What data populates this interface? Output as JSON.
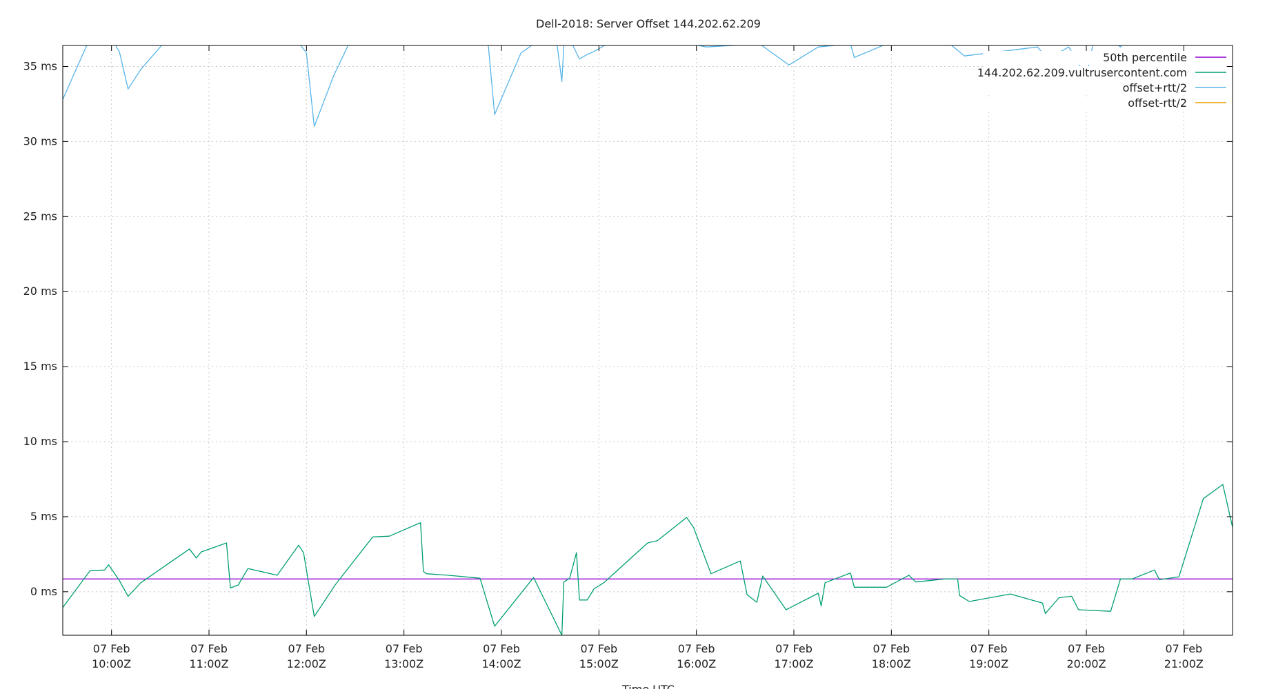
{
  "chart_data": {
    "type": "line",
    "title": "Dell-2018: Server Offset 144.202.62.209",
    "xlabel": "Time UTC",
    "ylabel": "",
    "y_unit": "ms",
    "ylim": [
      -2.9,
      36.4
    ],
    "yticks": [
      0,
      5,
      10,
      15,
      20,
      25,
      30,
      35
    ],
    "ytick_labels": [
      "0 ms",
      "5 ms",
      "10 ms",
      "15 ms",
      "20 ms",
      "25 ms",
      "30 ms",
      "35 ms"
    ],
    "xlim": [
      "07 Feb 09:30Z",
      "07 Feb 21:30Z"
    ],
    "xticks": [
      {
        "hour": 10,
        "line1": "07 Feb",
        "line2": "10:00Z"
      },
      {
        "hour": 11,
        "line1": "07 Feb",
        "line2": "11:00Z"
      },
      {
        "hour": 12,
        "line1": "07 Feb",
        "line2": "12:00Z"
      },
      {
        "hour": 13,
        "line1": "07 Feb",
        "line2": "13:00Z"
      },
      {
        "hour": 14,
        "line1": "07 Feb",
        "line2": "14:00Z"
      },
      {
        "hour": 15,
        "line1": "07 Feb",
        "line2": "15:00Z"
      },
      {
        "hour": 16,
        "line1": "07 Feb",
        "line2": "16:00Z"
      },
      {
        "hour": 17,
        "line1": "07 Feb",
        "line2": "17:00Z"
      },
      {
        "hour": 18,
        "line1": "07 Feb",
        "line2": "18:00Z"
      },
      {
        "hour": 19,
        "line1": "07 Feb",
        "line2": "19:00Z"
      },
      {
        "hour": 20,
        "line1": "07 Feb",
        "line2": "20:00Z"
      },
      {
        "hour": 21,
        "line1": "07 Feb",
        "line2": "21:00Z"
      }
    ],
    "grid": true,
    "legend_position": "top-right",
    "series": [
      {
        "name": "50th percentile",
        "color": "#9400d3",
        "points": [
          [
            9.5,
            0.85
          ],
          [
            21.5,
            0.85
          ]
        ]
      },
      {
        "name": "144.202.62.209.vultrusercontent.com",
        "color": "#009e73",
        "points": [
          [
            9.5,
            -1.05
          ],
          [
            9.78,
            1.4
          ],
          [
            9.93,
            1.45
          ],
          [
            9.97,
            1.8
          ],
          [
            10.08,
            0.75
          ],
          [
            10.17,
            -0.3
          ],
          [
            10.3,
            0.6
          ],
          [
            10.8,
            2.85
          ],
          [
            10.87,
            2.25
          ],
          [
            10.92,
            2.65
          ],
          [
            11.18,
            3.25
          ],
          [
            11.22,
            0.25
          ],
          [
            11.3,
            0.45
          ],
          [
            11.4,
            1.55
          ],
          [
            11.7,
            1.1
          ],
          [
            11.92,
            3.1
          ],
          [
            11.97,
            2.6
          ],
          [
            12.08,
            -1.65
          ],
          [
            12.3,
            0.5
          ],
          [
            12.68,
            3.65
          ],
          [
            12.85,
            3.7
          ],
          [
            13.17,
            4.6
          ],
          [
            13.2,
            1.35
          ],
          [
            13.23,
            1.2
          ],
          [
            13.45,
            1.1
          ],
          [
            13.78,
            0.9
          ],
          [
            13.93,
            -2.3
          ],
          [
            14.25,
            0.3
          ],
          [
            14.33,
            0.95
          ],
          [
            14.62,
            -2.9
          ],
          [
            14.64,
            0.65
          ],
          [
            14.7,
            0.9
          ],
          [
            14.77,
            2.6
          ],
          [
            14.8,
            -0.55
          ],
          [
            14.88,
            -0.55
          ],
          [
            14.95,
            0.2
          ],
          [
            15.05,
            0.6
          ],
          [
            15.5,
            3.25
          ],
          [
            15.6,
            3.4
          ],
          [
            15.9,
            4.95
          ],
          [
            15.97,
            4.3
          ],
          [
            16.15,
            1.2
          ],
          [
            16.45,
            2.05
          ],
          [
            16.52,
            -0.2
          ],
          [
            16.62,
            -0.7
          ],
          [
            16.68,
            1.05
          ],
          [
            16.92,
            -1.2
          ],
          [
            17.25,
            -0.1
          ],
          [
            17.28,
            -0.95
          ],
          [
            17.32,
            0.6
          ],
          [
            17.58,
            1.25
          ],
          [
            17.62,
            0.3
          ],
          [
            17.95,
            0.3
          ],
          [
            18.18,
            1.1
          ],
          [
            18.25,
            0.65
          ],
          [
            18.55,
            0.85
          ],
          [
            18.68,
            0.85
          ],
          [
            18.7,
            -0.25
          ],
          [
            18.8,
            -0.65
          ],
          [
            19.22,
            -0.15
          ],
          [
            19.55,
            -0.75
          ],
          [
            19.58,
            -1.45
          ],
          [
            19.72,
            -0.4
          ],
          [
            19.85,
            -0.3
          ],
          [
            19.92,
            -1.2
          ],
          [
            20.25,
            -1.3
          ],
          [
            20.35,
            0.85
          ],
          [
            20.47,
            0.85
          ],
          [
            20.7,
            1.45
          ],
          [
            20.75,
            0.8
          ],
          [
            20.95,
            1.0
          ],
          [
            21.2,
            6.2
          ],
          [
            21.4,
            7.15
          ],
          [
            21.5,
            4.3
          ]
        ]
      },
      {
        "name": "offset+rtt/2",
        "color": "#56b4e9",
        "points": [
          [
            9.5,
            32.8
          ],
          [
            9.8,
            37.2
          ],
          [
            10.0,
            37.5
          ],
          [
            10.05,
            36.3
          ],
          [
            10.08,
            36.0
          ],
          [
            10.17,
            33.5
          ],
          [
            10.3,
            34.8
          ],
          [
            10.62,
            37.2
          ],
          [
            11.3,
            37.5
          ],
          [
            11.85,
            37.2
          ],
          [
            12.0,
            35.9
          ],
          [
            12.08,
            31.0
          ],
          [
            12.28,
            34.4
          ],
          [
            12.5,
            37.4
          ],
          [
            13.4,
            37.4
          ],
          [
            13.85,
            37.5
          ],
          [
            13.93,
            31.8
          ],
          [
            14.2,
            35.9
          ],
          [
            14.55,
            37.5
          ],
          [
            14.62,
            34.0
          ],
          [
            14.65,
            37.5
          ],
          [
            14.8,
            35.5
          ],
          [
            14.88,
            35.8
          ],
          [
            14.95,
            36.0
          ],
          [
            15.3,
            37.3
          ],
          [
            16.1,
            36.3
          ],
          [
            16.65,
            36.5
          ],
          [
            16.95,
            35.1
          ],
          [
            17.25,
            36.3
          ],
          [
            17.58,
            36.5
          ],
          [
            17.62,
            35.6
          ],
          [
            17.95,
            36.5
          ],
          [
            18.6,
            36.5
          ],
          [
            18.75,
            35.7
          ],
          [
            19.5,
            36.3
          ],
          [
            19.6,
            35.5
          ],
          [
            19.82,
            36.3
          ],
          [
            20.0,
            34.3
          ],
          [
            20.1,
            37.5
          ],
          [
            20.35,
            36.3
          ],
          [
            20.5,
            37.5
          ]
        ]
      },
      {
        "name": "offset-rtt/2",
        "color": "#e69f00",
        "points": []
      }
    ]
  }
}
